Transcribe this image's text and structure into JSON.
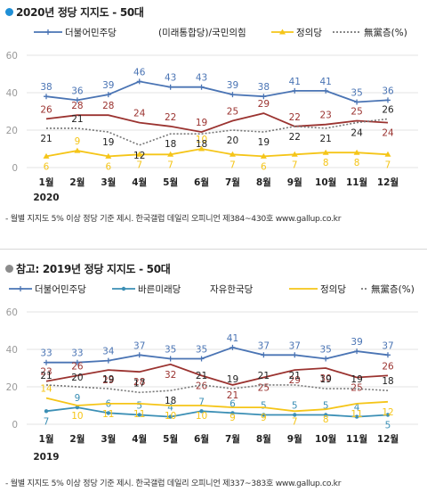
{
  "colors": {
    "title_dot_1": "#1f8fd6",
    "title_dot_2": "#8c8c8c"
  },
  "chart_data": [
    {
      "type": "line",
      "title": "2020년 정당 지지도 - 50대",
      "source_note": "- 월별 지지도 5% 이상 정당 기준 제시. 한국갤럽 데일리 오피니언 제384~430호 www.gallup.co.kr",
      "categories": [
        "1월",
        "2월",
        "3월",
        "4월",
        "5월",
        "6월",
        "7월",
        "8월",
        "9월",
        "10월",
        "11월",
        "12월"
      ],
      "year_label": "2020",
      "ylim": [
        0,
        60
      ],
      "yticks": [
        0,
        20,
        40,
        60
      ],
      "grid": true,
      "legend": "top",
      "series": [
        {
          "name": "더불어민주당",
          "color": "#4a74b4",
          "style": "solid",
          "marker": "plus",
          "values": [
            38,
            36,
            39,
            46,
            43,
            43,
            39,
            38,
            41,
            41,
            35,
            36
          ]
        },
        {
          "name": "(미래통합당)/국민의힘",
          "color": "#9b3330",
          "style": "solid",
          "marker": "none",
          "values": [
            26,
            28,
            28,
            24,
            22,
            19,
            25,
            29,
            22,
            23,
            25,
            24
          ]
        },
        {
          "name": "정의당",
          "color": "#f5c518",
          "style": "solid",
          "marker": "triangle",
          "values": [
            6,
            9,
            6,
            7,
            7,
            10,
            7,
            6,
            7,
            8,
            8,
            7
          ]
        },
        {
          "name": "無黨층(%)",
          "color": "#777777",
          "style": "dotted",
          "marker": "none",
          "values": [
            21,
            21,
            19,
            12,
            18,
            18,
            20,
            19,
            22,
            21,
            24,
            26
          ]
        }
      ]
    },
    {
      "type": "line",
      "title": "참고: 2019년 정당 지지도 - 50대",
      "source_note": "- 월별 지지도 5% 이상 정당 기준 제시. 한국갤럽 데일리 오피니언 제337~383호 www.gallup.co.kr",
      "categories": [
        "1월",
        "2월",
        "3월",
        "4월",
        "5월",
        "6월",
        "7월",
        "8월",
        "9월",
        "10월",
        "11월",
        "12월"
      ],
      "year_label": "2019",
      "ylim": [
        0,
        60
      ],
      "yticks": [
        0,
        20,
        40,
        60
      ],
      "grid": true,
      "legend": "top",
      "series": [
        {
          "name": "더불어민주당",
          "color": "#4a74b4",
          "style": "solid",
          "marker": "plus",
          "values": [
            33,
            33,
            34,
            37,
            35,
            35,
            41,
            37,
            37,
            35,
            39,
            37
          ]
        },
        {
          "name": "바른미래당",
          "color": "#3b8fb5",
          "style": "solid",
          "marker": "circle",
          "values": [
            7,
            9,
            6,
            5,
            4,
            7,
            6,
            5,
            5,
            5,
            4,
            5
          ]
        },
        {
          "name": "자유한국당",
          "color": "#9b3330",
          "style": "solid",
          "marker": "none",
          "values": [
            23,
            26,
            29,
            28,
            32,
            26,
            21,
            25,
            29,
            30,
            25,
            26
          ]
        },
        {
          "name": "정의당",
          "color": "#f5c518",
          "style": "solid",
          "marker": "none",
          "values": [
            14,
            10,
            11,
            11,
            10,
            10,
            9,
            9,
            7,
            8,
            11,
            12
          ]
        },
        {
          "name": "無黨층(%)",
          "color": "#777777",
          "style": "dotted",
          "marker": "none",
          "values": [
            21,
            20,
            19,
            17,
            18,
            21,
            19,
            21,
            21,
            19,
            19,
            18
          ]
        }
      ]
    }
  ]
}
